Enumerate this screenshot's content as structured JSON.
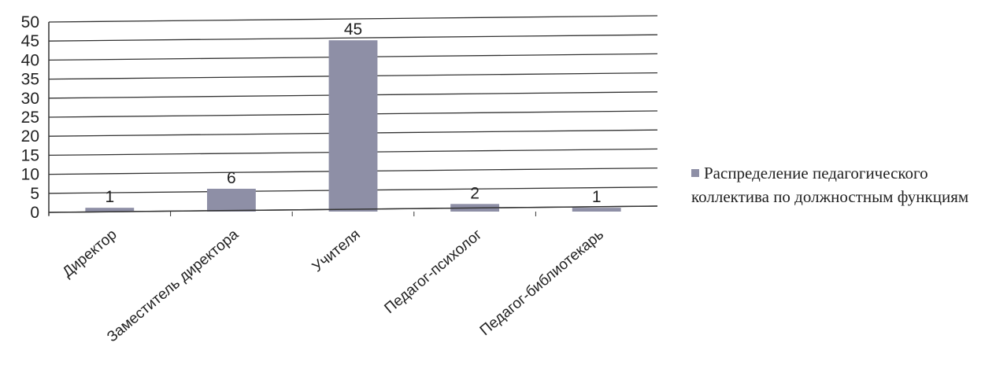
{
  "chart_data": {
    "type": "bar",
    "categories": [
      "Директор",
      "Заместитель директора",
      "Учителя",
      "Педагог-психолог",
      "Педагог-библиотекарь"
    ],
    "series": [
      {
        "name": "Распределение педагогического коллектива по должностным функциям",
        "values": [
          1,
          6,
          45,
          2,
          1
        ],
        "color": "#8e8fa6"
      }
    ],
    "data_labels": [
      "1",
      "6",
      "45",
      "2",
      "1"
    ],
    "ylim": [
      0,
      50
    ],
    "yticks": [
      0,
      5,
      10,
      15,
      20,
      25,
      30,
      35,
      40,
      45,
      50
    ],
    "grid": true,
    "legend_position": "right",
    "title": "",
    "xlabel": "",
    "ylabel": ""
  }
}
